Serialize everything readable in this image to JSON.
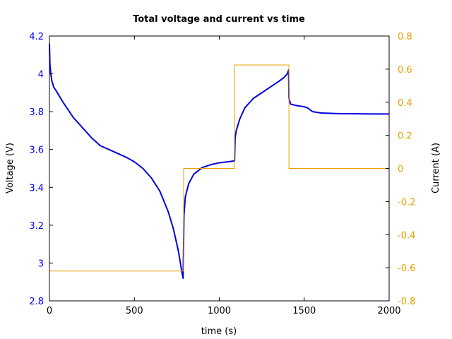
{
  "chart_data": {
    "type": "line",
    "title": "Total voltage and current vs time",
    "xlabel": "time (s)",
    "ylabel_left": "Voltage (V)",
    "ylabel_right": "Current (A)",
    "xlim": [
      0,
      2000
    ],
    "ylim_left": [
      2.8,
      4.2
    ],
    "ylim_right": [
      -0.8,
      0.8
    ],
    "x_ticks": [
      0,
      500,
      1000,
      1500,
      2000
    ],
    "x_tick_labels": [
      "0",
      "500",
      "1000",
      "1500",
      "2000"
    ],
    "y_left_ticks": [
      2.8,
      3.0,
      3.2,
      3.4,
      3.6,
      3.8,
      4.0,
      4.2
    ],
    "y_left_tick_labels": [
      "2.8",
      "3",
      "3.2",
      "3.4",
      "3.6",
      "3.8",
      "4",
      "4.2"
    ],
    "y_right_ticks": [
      -0.8,
      -0.6,
      -0.4,
      -0.2,
      0.0,
      0.2,
      0.4,
      0.6,
      0.8
    ],
    "y_right_tick_labels": [
      "-0.8",
      "-0.6",
      "-0.4",
      "-0.2",
      "0",
      "0.2",
      "0.4",
      "0.6",
      "0.8"
    ],
    "grid": false,
    "colors": {
      "voltage": "#0000e0",
      "current": "#e8a000",
      "left_axis_text": "#0000ff",
      "right_axis_text": "#e8a000"
    },
    "series": [
      {
        "axis": "left",
        "x": [
          0,
          3,
          8,
          15,
          25,
          40,
          60,
          80,
          110,
          140,
          170,
          200,
          250,
          300,
          350,
          400,
          450,
          500,
          550,
          600,
          650,
          700,
          730,
          760,
          780,
          787,
          790,
          792,
          800,
          820,
          850,
          900,
          950,
          1000,
          1050,
          1090,
          1093,
          1100,
          1120,
          1150,
          1200,
          1250,
          1300,
          1350,
          1380,
          1400,
          1408,
          1410,
          1420,
          1450,
          1500,
          1520,
          1550,
          1600,
          1700,
          1800,
          1900,
          2000
        ],
        "y": [
          4.16,
          4.05,
          4.0,
          3.96,
          3.93,
          3.91,
          3.88,
          3.85,
          3.81,
          3.77,
          3.74,
          3.71,
          3.66,
          3.62,
          3.6,
          3.58,
          3.56,
          3.535,
          3.5,
          3.45,
          3.38,
          3.27,
          3.18,
          3.06,
          2.95,
          2.92,
          3.1,
          3.25,
          3.35,
          3.42,
          3.47,
          3.505,
          3.52,
          3.53,
          3.535,
          3.54,
          3.66,
          3.7,
          3.76,
          3.82,
          3.87,
          3.9,
          3.93,
          3.96,
          3.98,
          4.0,
          4.02,
          3.87,
          3.84,
          3.833,
          3.826,
          3.82,
          3.8,
          3.793,
          3.79,
          3.789,
          3.788,
          3.788
        ]
      },
      {
        "axis": "right",
        "x": [
          0,
          0,
          790,
          790,
          1090,
          1090,
          1410,
          1410,
          2000
        ],
        "y": [
          0,
          -0.62,
          -0.62,
          0,
          0,
          0.625,
          0.625,
          0,
          0
        ]
      }
    ]
  }
}
